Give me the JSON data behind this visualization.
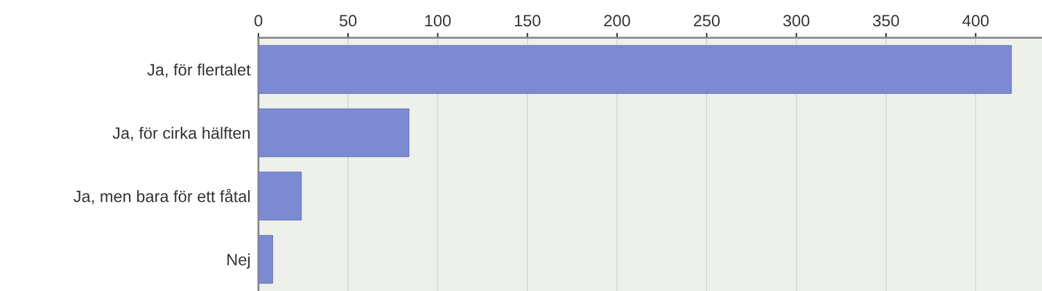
{
  "chart_data": {
    "type": "bar",
    "orientation": "horizontal",
    "categories": [
      "Ja, för flertalet",
      "Ja, för cirka hälften",
      "Ja, men bara för ett fåtal",
      "Nej"
    ],
    "values": [
      420,
      84,
      24,
      8
    ],
    "color": "#7b8ad2",
    "xlim": [
      0,
      437
    ],
    "xticks": [
      0,
      50,
      100,
      150,
      200,
      250,
      300,
      350,
      400
    ],
    "grid": "x"
  }
}
